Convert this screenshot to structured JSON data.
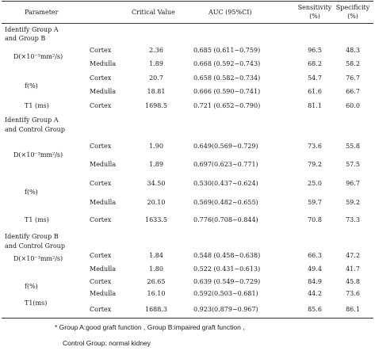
{
  "header": {
    "parameter": "Parameter",
    "critical_value": "Critical Value",
    "auc": "AUC (95%CI)",
    "sensitivity": "Sensitivity",
    "sensitivity_unit": "(%)",
    "specificity": "Specificity",
    "specificity_unit": "(%)"
  },
  "groups": [
    {
      "title_line1": "Identify Group A",
      "title_line2": "and Group B",
      "params": [
        {
          "label": "D(×10⁻³mm²/s)",
          "rows": [
            {
              "region": "Cortex",
              "cv": "2.36",
              "auc": "0.685 (0.611~0.759)",
              "sens": "96.5",
              "spec": "48.3"
            },
            {
              "region": "Medulla",
              "cv": "1.89",
              "auc": "0.668 (0.592~0.743)",
              "sens": "68.2",
              "spec": "58.2"
            }
          ]
        },
        {
          "label": "f(%)",
          "rows": [
            {
              "region": "Cortex",
              "cv": "20.7",
              "auc": "0.658 (0.582~0.734)",
              "sens": "54.7",
              "spec": "76.7"
            },
            {
              "region": "Medulla",
              "cv": "18.81",
              "auc": "0.666 (0.590~0.741)",
              "sens": "61.6",
              "spec": "66.7"
            }
          ]
        },
        {
          "label": "T1 (ms)",
          "rows": [
            {
              "region": "Cortex",
              "cv": "1698.5",
              "auc": "0.721 (0.652~0.790)",
              "sens": "81.1",
              "spec": "60.0"
            }
          ]
        }
      ]
    },
    {
      "title_line1": "Identify Group A",
      "title_line2": "and Control Group",
      "params": [
        {
          "label": "D(×10⁻³mm²/s)",
          "rows": [
            {
              "region": "Cortex",
              "cv": "1.90",
              "auc": "0.649(0.569~0.729)",
              "sens": "73.6",
              "spec": "55.8"
            },
            {
              "region": "Medulla",
              "cv": "1.89",
              "auc": "0.697(0.623~0.771)",
              "sens": "79.2",
              "spec": "57.5"
            }
          ]
        },
        {
          "label": "f(%)",
          "rows": [
            {
              "region": "Cortex",
              "cv": "34.50",
              "auc": "0.530(0.437~0.624)",
              "sens": "25.0",
              "spec": "96.7"
            },
            {
              "region": "Medulla",
              "cv": "20.10",
              "auc": "0.569(0.482~0.655)",
              "sens": "59.7",
              "spec": "59.2"
            }
          ]
        },
        {
          "label": "T1  (ms)",
          "rows": [
            {
              "region": "Cortex",
              "cv": "1633.5",
              "auc": "0.776(0.708~0.844)",
              "sens": "70.8",
              "spec": "73.3"
            }
          ]
        }
      ]
    },
    {
      "title_line1": "Identify Group B",
      "title_line2": "and Control Group",
      "params": [
        {
          "label": "D(×10⁻³mm²/s)",
          "rows": [
            {
              "region": "Cortex",
              "cv": "1.84",
              "auc": "0.548 (0.458~0.638)",
              "sens": "66.3",
              "spec": "47.2"
            },
            {
              "region": "Medulla",
              "cv": "1.80",
              "auc": "0.522 (0.431~0.613)",
              "sens": "49.4",
              "spec": "41.7"
            }
          ]
        },
        {
          "label": "f(%)",
          "rows": [
            {
              "region": "Cortex",
              "cv": "26.65",
              "auc": "0.639 (0.549~0.729)",
              "sens": "84.9",
              "spec": "45.8"
            },
            {
              "region": "Medulla",
              "cv": "16.10",
              "auc": "0.592(0.503~0.681)",
              "sens": "44.2",
              "spec": "73.6"
            }
          ]
        },
        {
          "label": "T1(ms)",
          "rows": [
            {
              "region": "Cortex",
              "cv": "1688.3",
              "auc": "0.923(0.879~0.967)",
              "sens": "85.6",
              "spec": "86.1"
            }
          ]
        }
      ]
    }
  ],
  "footnote": {
    "line1": "* Group A:good graft function ,   Group B:impaired graft function ,",
    "line2": "Control Group: normal kidney"
  }
}
